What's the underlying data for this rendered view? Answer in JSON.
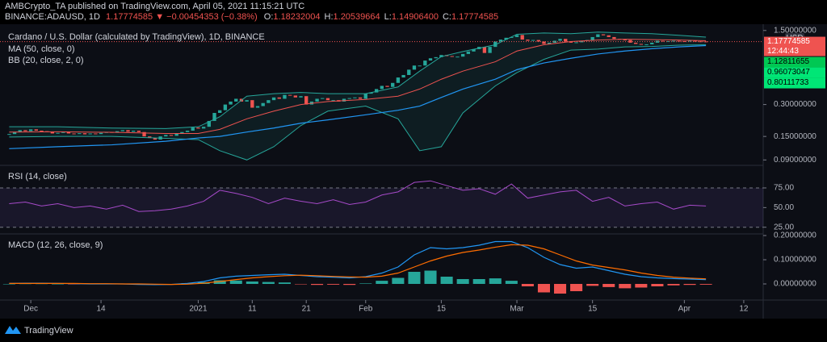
{
  "header": {
    "line1": "AMBCrypto_TA published on TradingView.com, April 05, 2021 11:15:21 UTC",
    "symbol": "BINANCE:ADAUSD, 1D",
    "change": "1.17774585 ▼ −0.00454353 (−0.38%)",
    "ohlc": [
      {
        "key": "O:",
        "value": "1.18232004"
      },
      {
        "key": "H:",
        "value": "1.20539664"
      },
      {
        "key": "L:",
        "value": "1.14906400"
      },
      {
        "key": "C:",
        "value": "1.17774585"
      }
    ]
  },
  "footer": {
    "brand": "TradingView"
  },
  "chart_data": [
    {
      "type": "candlestick",
      "title": "Cardano / U.S. Dollar (calculated by TradingView), 1D, BINANCE",
      "log_scale": true,
      "axis_unit": "USD",
      "last_price_label": "1.17774585",
      "countdown": "12:44:43",
      "indicator_labels": [
        "1.12811655",
        "0.96073047",
        "0.80111733"
      ],
      "up_color": "#26a69a",
      "down_color": "#ef5350",
      "xlim": [
        -5.7,
        135.6
      ],
      "ylim": [
        0.08,
        1.66
      ],
      "yticks": [
        {
          "value": 1.5,
          "label": "1.50000000"
        },
        {
          "value": 0.3,
          "label": "0.30000000"
        },
        {
          "value": 0.15,
          "label": "0.15000000"
        },
        {
          "value": 0.09,
          "label": "0.09000000"
        }
      ],
      "x": [
        -4,
        -3,
        -2,
        -1,
        0,
        1,
        2,
        3,
        4,
        5,
        6,
        7,
        8,
        9,
        10,
        11,
        12,
        13,
        14,
        15,
        16,
        17,
        18,
        19,
        20,
        21,
        22,
        23,
        24,
        25,
        26,
        27,
        28,
        29,
        30,
        31,
        32,
        33,
        34,
        35,
        36,
        37,
        38,
        39,
        40,
        41,
        42,
        43,
        44,
        45,
        46,
        47,
        48,
        49,
        50,
        51,
        52,
        53,
        54,
        55,
        56,
        57,
        58,
        59,
        60,
        61,
        62,
        63,
        64,
        65,
        66,
        67,
        68,
        69,
        70,
        71,
        72,
        73,
        74,
        75,
        76,
        77,
        78,
        79,
        80,
        81,
        82,
        83,
        84,
        85,
        86,
        87,
        88,
        89,
        90,
        91,
        92,
        93,
        94,
        95,
        96,
        97,
        98,
        99,
        100,
        101,
        102,
        103,
        104,
        105,
        106,
        107,
        108,
        109,
        110,
        111,
        112,
        113,
        114,
        115,
        116,
        117,
        118,
        119,
        120,
        121,
        122,
        123,
        124,
        125
      ],
      "close": [
        0.158,
        0.165,
        0.172,
        0.168,
        0.175,
        0.17,
        0.168,
        0.165,
        0.16,
        0.162,
        0.166,
        0.16,
        0.158,
        0.161,
        0.157,
        0.16,
        0.158,
        0.162,
        0.165,
        0.163,
        0.168,
        0.172,
        0.166,
        0.17,
        0.165,
        0.15,
        0.145,
        0.14,
        0.15,
        0.155,
        0.152,
        0.16,
        0.165,
        0.17,
        0.182,
        0.178,
        0.185,
        0.21,
        0.25,
        0.265,
        0.3,
        0.32,
        0.34,
        0.32,
        0.33,
        0.28,
        0.29,
        0.31,
        0.33,
        0.35,
        0.34,
        0.37,
        0.365,
        0.35,
        0.36,
        0.3,
        0.32,
        0.34,
        0.345,
        0.33,
        0.33,
        0.32,
        0.34,
        0.345,
        0.35,
        0.34,
        0.38,
        0.39,
        0.42,
        0.45,
        0.44,
        0.48,
        0.54,
        0.57,
        0.64,
        0.7,
        0.7,
        0.78,
        0.82,
        0.84,
        0.88,
        0.86,
        0.85,
        0.85,
        0.9,
        0.95,
        1.0,
        1.05,
        0.92,
        1.05,
        1.18,
        1.23,
        1.28,
        1.3,
        1.36,
        1.23,
        1.2,
        1.22,
        1.18,
        1.12,
        1.15,
        1.2,
        1.25,
        1.18,
        1.15,
        1.16,
        1.2,
        1.22,
        1.3,
        1.38,
        1.35,
        1.3,
        1.25,
        1.23,
        1.22,
        1.15,
        1.12,
        1.1,
        1.11,
        1.15,
        1.2,
        1.18,
        1.19,
        1.2,
        1.19,
        1.18,
        1.2,
        1.185,
        1.182,
        1.178
      ],
      "overlays": [
        {
          "name": "MA (50, close, 0)",
          "color": "#2196f3",
          "x": [
            -4,
            5,
            15,
            25,
            31,
            35,
            40,
            45,
            50,
            55,
            62,
            68,
            72,
            76,
            80,
            86,
            90,
            95,
            100,
            105,
            110,
            115,
            120,
            125
          ],
          "values": [
            0.115,
            0.12,
            0.125,
            0.135,
            0.145,
            0.15,
            0.165,
            0.18,
            0.2,
            0.215,
            0.24,
            0.265,
            0.29,
            0.35,
            0.42,
            0.52,
            0.64,
            0.74,
            0.82,
            0.9,
            0.96,
            1.01,
            1.05,
            1.08
          ]
        }
      ],
      "bands": {
        "name": "BB (20, close, 2, 0)",
        "color": "#26a69a",
        "basis_color": "#ef5350",
        "fill": "rgba(38,166,154,0.10)",
        "x": [
          -4,
          5,
          15,
          25,
          31,
          35,
          40,
          45,
          50,
          55,
          62,
          68,
          72,
          76,
          80,
          86,
          90,
          95,
          100,
          105,
          110,
          115,
          120,
          125
        ],
        "upper": [
          0.185,
          0.185,
          0.18,
          0.178,
          0.185,
          0.23,
          0.36,
          0.38,
          0.39,
          0.38,
          0.38,
          0.44,
          0.62,
          0.85,
          0.95,
          1.1,
          1.38,
          1.42,
          1.4,
          1.45,
          1.42,
          1.4,
          1.35,
          1.3
        ],
        "basis": [
          0.165,
          0.166,
          0.164,
          0.16,
          0.16,
          0.175,
          0.22,
          0.26,
          0.3,
          0.32,
          0.335,
          0.36,
          0.42,
          0.52,
          0.62,
          0.76,
          0.96,
          1.1,
          1.18,
          1.22,
          1.24,
          1.23,
          1.22,
          1.2
        ],
        "lower": [
          0.148,
          0.15,
          0.15,
          0.144,
          0.14,
          0.11,
          0.09,
          0.12,
          0.19,
          0.26,
          0.29,
          0.22,
          0.11,
          0.12,
          0.25,
          0.45,
          0.6,
          0.8,
          0.98,
          1.0,
          1.05,
          1.06,
          1.09,
          1.1
        ]
      }
    },
    {
      "type": "line",
      "title": "RSI (14, close)",
      "color": "#a64ac9",
      "band_color": "rgba(126,87,194,0.12)",
      "xlim": [
        -5.7,
        135.6
      ],
      "ylim": [
        16.5,
        103.7
      ],
      "yticks": [
        {
          "value": 75,
          "label": "75.00"
        },
        {
          "value": 50,
          "label": "50.00"
        },
        {
          "value": 25,
          "label": "25.00"
        }
      ],
      "x": [
        -4,
        -1,
        2,
        5,
        8,
        11,
        14,
        17,
        20,
        23,
        26,
        29,
        32,
        35,
        38,
        41,
        44,
        47,
        50,
        53,
        56,
        59,
        62,
        65,
        68,
        71,
        74,
        77,
        80,
        83,
        86,
        89,
        92,
        95,
        98,
        101,
        104,
        107,
        110,
        113,
        116,
        119,
        122,
        125
      ],
      "values": [
        55,
        57,
        52,
        55,
        50,
        52,
        48,
        53,
        45,
        46,
        48,
        52,
        58,
        72,
        68,
        63,
        55,
        62,
        58,
        55,
        60,
        54,
        57,
        66,
        70,
        82,
        84,
        78,
        72,
        74,
        67,
        80,
        62,
        66,
        70,
        72,
        58,
        63,
        52,
        55,
        57,
        48,
        53,
        52
      ]
    },
    {
      "type": "combo",
      "title": "MACD (12, 26, close, 9)",
      "xlim": [
        -5.7,
        135.6
      ],
      "ylim": [
        -0.0667,
        0.2067
      ],
      "yticks": [
        {
          "value": 0.2,
          "label": "0.20000000"
        },
        {
          "value": 0.1,
          "label": "0.10000000"
        },
        {
          "value": 0,
          "label": "0.00000000"
        }
      ],
      "xticks": [
        {
          "value": 0,
          "label": "Dec"
        },
        {
          "value": 13,
          "label": "14"
        },
        {
          "value": 31,
          "label": "2021"
        },
        {
          "value": 41,
          "label": "11"
        },
        {
          "value": 51,
          "label": "21"
        },
        {
          "value": 62,
          "label": "Feb"
        },
        {
          "value": 76,
          "label": "15"
        },
        {
          "value": 90,
          "label": "Mar"
        },
        {
          "value": 104,
          "label": "15"
        },
        {
          "value": 121,
          "label": "Apr"
        },
        {
          "value": 132,
          "label": "12"
        }
      ],
      "x": [
        -4,
        -1,
        2,
        5,
        8,
        11,
        14,
        17,
        20,
        23,
        26,
        29,
        32,
        35,
        38,
        41,
        44,
        47,
        50,
        53,
        56,
        59,
        62,
        65,
        68,
        71,
        74,
        77,
        80,
        83,
        86,
        89,
        92,
        95,
        98,
        101,
        104,
        107,
        110,
        113,
        116,
        119,
        122,
        125
      ],
      "histogram": {
        "up_color": "#26a69a",
        "down_color": "#ef5350",
        "values": [
          0.0,
          0.001,
          0.001,
          0.0,
          -0.001,
          -0.001,
          -0.001,
          0.0,
          -0.002,
          -0.002,
          0.0,
          0.003,
          0.007,
          0.015,
          0.014,
          0.01,
          0.008,
          0.006,
          -0.001,
          -0.004,
          -0.003,
          -0.004,
          0.002,
          0.013,
          0.025,
          0.05,
          0.055,
          0.03,
          0.02,
          0.02,
          0.023,
          0.013,
          -0.01,
          -0.035,
          -0.04,
          -0.03,
          -0.008,
          -0.013,
          -0.018,
          -0.015,
          -0.01,
          -0.006,
          -0.004,
          -0.003
        ]
      },
      "series": [
        {
          "color": "#2196f3",
          "values": [
            0.002,
            0.003,
            0.003,
            0.002,
            0.001,
            0.0,
            0.0,
            0.0,
            -0.002,
            -0.003,
            -0.002,
            0.002,
            0.01,
            0.025,
            0.032,
            0.035,
            0.038,
            0.04,
            0.035,
            0.03,
            0.028,
            0.025,
            0.03,
            0.045,
            0.07,
            0.12,
            0.15,
            0.145,
            0.15,
            0.16,
            0.175,
            0.175,
            0.15,
            0.11,
            0.08,
            0.065,
            0.07,
            0.055,
            0.04,
            0.03,
            0.025,
            0.022,
            0.02,
            0.018
          ]
        },
        {
          "color": "#ff6d00",
          "values": [
            0.002,
            0.002,
            0.002,
            0.002,
            0.002,
            0.001,
            0.001,
            0.0,
            0.0,
            -0.001,
            -0.002,
            -0.001,
            0.003,
            0.01,
            0.018,
            0.025,
            0.03,
            0.034,
            0.036,
            0.034,
            0.031,
            0.029,
            0.028,
            0.032,
            0.045,
            0.07,
            0.095,
            0.115,
            0.13,
            0.14,
            0.152,
            0.162,
            0.16,
            0.145,
            0.12,
            0.095,
            0.078,
            0.068,
            0.058,
            0.045,
            0.035,
            0.028,
            0.024,
            0.021
          ]
        }
      ]
    }
  ]
}
